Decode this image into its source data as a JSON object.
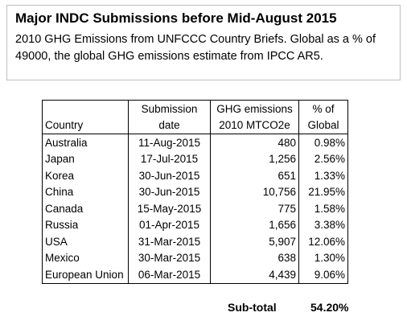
{
  "header": {
    "title": "Major INDC Submissions before Mid-August 2015",
    "subtitle": "2010 GHG Emissions from UNFCCC Country Briefs. Global as a % of 49000, the global GHG emissions estimate from IPCC AR5."
  },
  "table": {
    "columns": [
      [
        "Country"
      ],
      [
        "Submission",
        "date"
      ],
      [
        "GHG emissions",
        "2010 MTCO2e"
      ],
      [
        "% of",
        "Global"
      ]
    ],
    "rows": [
      [
        "Australia",
        "11-Aug-2015",
        "480",
        "0.98%"
      ],
      [
        "Japan",
        "17-Jul-2015",
        "1,256",
        "2.56%"
      ],
      [
        "Korea",
        "30-Jun-2015",
        "651",
        "1.33%"
      ],
      [
        "China",
        "30-Jun-2015",
        "10,756",
        "21.95%"
      ],
      [
        "Canada",
        "15-May-2015",
        "775",
        "1.58%"
      ],
      [
        "Russia",
        "01-Apr-2015",
        "1,656",
        "3.38%"
      ],
      [
        "USA",
        "31-Mar-2015",
        "5,907",
        "12.06%"
      ],
      [
        "Mexico",
        "30-Mar-2015",
        "638",
        "1.30%"
      ],
      [
        "European Union",
        "06-Mar-2015",
        "4,439",
        "9.06%"
      ]
    ]
  },
  "subtotal": {
    "label": "Sub-total",
    "value": "54.20%"
  }
}
